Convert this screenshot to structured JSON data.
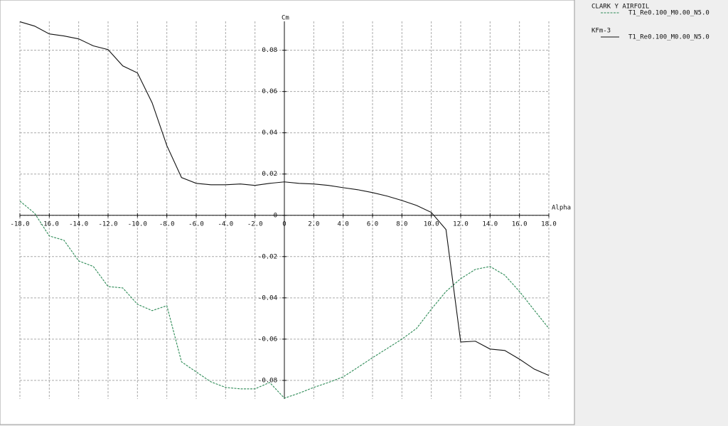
{
  "chart_data": {
    "type": "line",
    "x_label": "Alpha",
    "y_label": "Cm",
    "x": [
      -18,
      -17,
      -16,
      -15,
      -14,
      -13,
      -12,
      -11,
      -10,
      -9,
      -8,
      -7,
      -6,
      -5,
      -4,
      -3,
      -2,
      -1,
      0,
      1,
      2,
      3,
      4,
      5,
      6,
      7,
      8,
      9,
      10,
      11,
      12,
      13,
      14,
      15,
      16,
      17,
      18
    ],
    "series": [
      {
        "airfoil": "CLARK Y AIRFOIL",
        "name": "T1_Re0.100_M0.00_N5.0",
        "color": "#2e8b57",
        "dashed": true,
        "values": [
          0.0069,
          0.001,
          -0.01,
          -0.0121,
          -0.0221,
          -0.0248,
          -0.0345,
          -0.0352,
          -0.0431,
          -0.0462,
          -0.0438,
          -0.071,
          -0.0759,
          -0.0807,
          -0.0834,
          -0.0841,
          -0.0841,
          -0.081,
          -0.0886,
          -0.0862,
          -0.0834,
          -0.081,
          -0.0783,
          -0.0737,
          -0.069,
          -0.0645,
          -0.06,
          -0.0548,
          -0.0455,
          -0.0369,
          -0.0307,
          -0.0262,
          -0.0248,
          -0.029,
          -0.0369,
          -0.0459,
          -0.0548
        ]
      },
      {
        "airfoil": "KFm-3",
        "name": "T1_Re0.100_M0.00_N5.0",
        "color": "#111111",
        "dashed": false,
        "values": [
          0.0938,
          0.0917,
          0.0879,
          0.0869,
          0.0855,
          0.0821,
          0.0803,
          0.0724,
          0.069,
          0.0545,
          0.0338,
          0.0183,
          0.0155,
          0.0148,
          0.0148,
          0.0152,
          0.0145,
          0.0155,
          0.0162,
          0.0155,
          0.0152,
          0.0145,
          0.0134,
          0.0124,
          0.011,
          0.0093,
          0.0072,
          0.0048,
          0.0014,
          -0.0069,
          -0.0614,
          -0.061,
          -0.0648,
          -0.0655,
          -0.0697,
          -0.0745,
          -0.0776
        ]
      }
    ],
    "xlim": [
      -18,
      18
    ],
    "ylim": [
      -0.089,
      0.094
    ],
    "xticks": [
      {
        "value": -18,
        "label": "-18.0"
      },
      {
        "value": -16,
        "label": "-16.0"
      },
      {
        "value": -14,
        "label": "-14.0"
      },
      {
        "value": -12,
        "label": "-12.0"
      },
      {
        "value": -10,
        "label": "-10.0"
      },
      {
        "value": -8,
        "label": "-8.0"
      },
      {
        "value": -6,
        "label": "-6.0"
      },
      {
        "value": -4,
        "label": "-4.0"
      },
      {
        "value": -2,
        "label": "-2.0"
      },
      0,
      {
        "value": 2,
        "label": "2.0"
      },
      {
        "value": 4,
        "label": "4.0"
      },
      {
        "value": 6,
        "label": "6.0"
      },
      {
        "value": 8,
        "label": "8.0"
      },
      {
        "value": 10,
        "label": "10.0"
      },
      {
        "value": 12,
        "label": "12.0"
      },
      {
        "value": 14,
        "label": "14.0"
      },
      {
        "value": 16,
        "label": "16.0"
      },
      {
        "value": 18,
        "label": "18.0"
      }
    ],
    "yticks": [
      -0.08,
      -0.06,
      -0.04,
      -0.02,
      0,
      0.02,
      0.04,
      0.06,
      0.08
    ],
    "grid": true
  }
}
